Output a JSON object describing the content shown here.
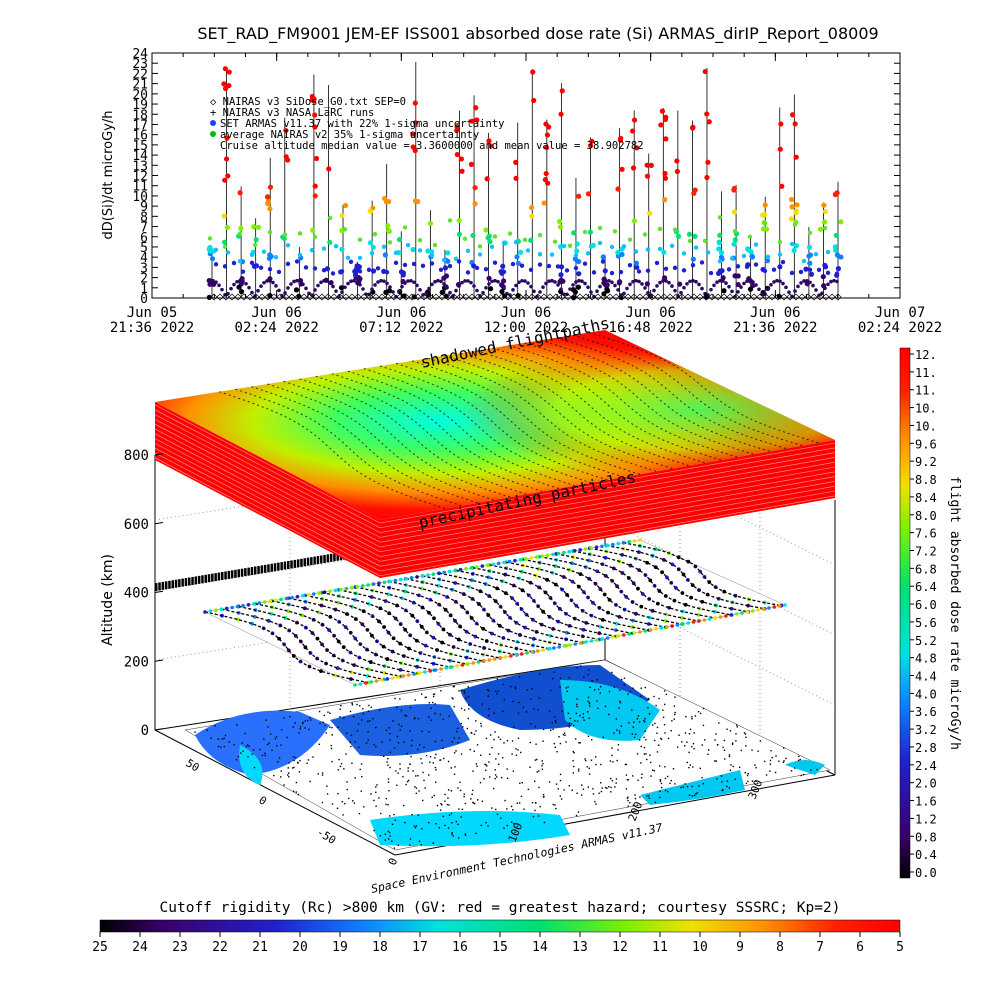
{
  "title": "SET_RAD_FM9001  JEM-EF ISS001 absorbed dose rate (Si) ARMAS_dirIP_Report_08009",
  "chart_data": [
    {
      "type": "scatter",
      "ylabel": "dD(Si)/dt microGy/h",
      "ylim": [
        0,
        24
      ],
      "y_ticks": [
        "0",
        "1",
        "2",
        "3",
        "4",
        "5",
        "6",
        "7",
        "8",
        "9",
        "10",
        "11",
        "12",
        "13",
        "14",
        "15",
        "16",
        "17",
        "18",
        "19",
        "20",
        "21",
        "22",
        "23",
        "24"
      ],
      "x_ticks": [
        {
          "top": "Jun 05",
          "bottom": "21:36 2022"
        },
        {
          "top": "Jun 06",
          "bottom": "02:24 2022"
        },
        {
          "top": "Jun 06",
          "bottom": "07:12 2022"
        },
        {
          "top": "Jun 06",
          "bottom": "12:00 2022"
        },
        {
          "top": "Jun 06",
          "bottom": "16:48 2022"
        },
        {
          "top": "Jun 06",
          "bottom": "21:36 2022"
        },
        {
          "top": "Jun 07",
          "bottom": "02:24 2022"
        }
      ],
      "legend": [
        "◇ NAIRAS v3 SiDose_G0.txt SEP=0",
        "+ NAIRAS v3 NASA LaRC runs",
        "SET ARMAS v11.37 with 22% 1-sigma uncertainty",
        "average NAIRAS v2 35% 1-sigma uncertainty",
        "Cruise altitude median value = 3.3600000 and mean value = 38.902782"
      ],
      "legend_colors": [
        "#000000",
        "#000000",
        "#2040ff",
        "#00c000"
      ],
      "series": [
        {
          "name": "NAIRAS v3 SiDose_G0.txt SEP=0",
          "values_range": [
            0,
            2.5
          ]
        },
        {
          "name": "SET ARMAS v11.37",
          "values_range": [
            0,
            24
          ]
        }
      ]
    },
    {
      "type": "3d-surface",
      "zlabel": "Altitude (km)",
      "z_ticks": [
        "0",
        "200",
        "400",
        "600",
        "800"
      ],
      "lat_ticks": [
        "50",
        "0",
        "-50"
      ],
      "lon_ticks": [
        "0",
        "100",
        "200",
        "300"
      ],
      "annotations": [
        "shadowed flightpaths",
        "precipitating particles"
      ],
      "footer": "Space Environment Technologies ARMAS v11.37"
    }
  ],
  "colorbar_right": {
    "label": "flight absorbed dose rate microGy/h",
    "ticks": [
      "12.",
      "11.",
      "11.",
      "10.",
      "10.",
      "9.6",
      "9.2",
      "8.8",
      "8.4",
      "8.0",
      "7.6",
      "7.2",
      "6.8",
      "6.4",
      "6.0",
      "5.6",
      "5.2",
      "4.8",
      "4.4",
      "4.0",
      "3.6",
      "3.2",
      "2.8",
      "2.4",
      "2.0",
      "1.6",
      "1.2",
      "0.8",
      "0.4",
      "0.0"
    ]
  },
  "colorbar_bottom": {
    "title": "Cutoff rigidity (Rc) >800 km (GV: red = greatest hazard; courtesy SSSRC; Kp=2)",
    "ticks": [
      "25",
      "24",
      "23",
      "22",
      "21",
      "20",
      "19",
      "18",
      "17",
      "16",
      "15",
      "14",
      "13",
      "12",
      "11",
      "10",
      "9",
      "8",
      "7",
      "6",
      "5"
    ]
  },
  "colors": {
    "scale": [
      "#000000",
      "#3a006a",
      "#2020d0",
      "#1080ff",
      "#00e0e0",
      "#00e070",
      "#80f000",
      "#f0e000",
      "#ff9000",
      "#ff2000",
      "#ff0000"
    ]
  }
}
